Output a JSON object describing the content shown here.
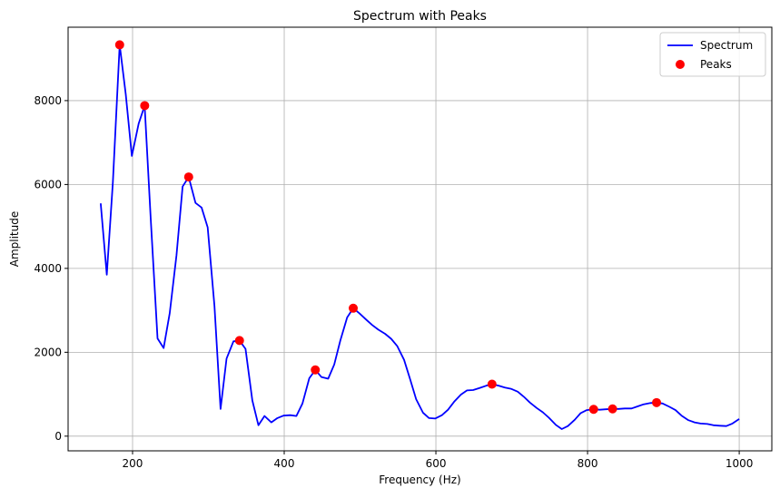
{
  "chart_data": {
    "type": "line",
    "title": "Spectrum with Peaks",
    "xlabel": "Frequency (Hz)",
    "ylabel": "Amplitude",
    "xlim": [
      115,
      1043
    ],
    "ylim": [
      -350,
      9750
    ],
    "xticks": [
      200,
      400,
      600,
      800,
      1000
    ],
    "yticks": [
      0,
      2000,
      4000,
      6000,
      8000
    ],
    "grid": true,
    "legend_position": "top-right",
    "colors": {
      "spectrum": "#0000ff",
      "peaks": "#ff0000"
    },
    "series": [
      {
        "name": "Spectrum",
        "kind": "line",
        "x": [
          158,
          166,
          174,
          183,
          191,
          199,
          208,
          216,
          224,
          233,
          241,
          249,
          258,
          266,
          274,
          283,
          291,
          299,
          308,
          316,
          324,
          333,
          341,
          349,
          358,
          366,
          374,
          383,
          391,
          399,
          408,
          416,
          424,
          433,
          441,
          449,
          458,
          466,
          474,
          483,
          491,
          499,
          508,
          516,
          524,
          533,
          541,
          549,
          558,
          566,
          574,
          583,
          591,
          599,
          608,
          616,
          624,
          633,
          641,
          649,
          658,
          666,
          674,
          683,
          691,
          699,
          708,
          716,
          724,
          733,
          741,
          749,
          758,
          766,
          774,
          783,
          791,
          799,
          808,
          816,
          824,
          833,
          841,
          849,
          858,
          866,
          874,
          883,
          891,
          899,
          908,
          916,
          924,
          933,
          941,
          949,
          958,
          966,
          974,
          983,
          991,
          1000
        ],
        "values": [
          5550,
          3850,
          6050,
          9330,
          8150,
          6680,
          7450,
          7880,
          5180,
          2330,
          2100,
          2930,
          4320,
          5950,
          6180,
          5560,
          5450,
          4980,
          3100,
          650,
          1850,
          2260,
          2280,
          2080,
          850,
          260,
          480,
          330,
          430,
          490,
          500,
          480,
          780,
          1380,
          1580,
          1410,
          1370,
          1710,
          2280,
          2830,
          3050,
          2930,
          2780,
          2650,
          2540,
          2440,
          2320,
          2150,
          1820,
          1360,
          880,
          560,
          430,
          420,
          500,
          630,
          820,
          990,
          1090,
          1100,
          1150,
          1200,
          1240,
          1200,
          1160,
          1130,
          1060,
          940,
          800,
          670,
          570,
          440,
          270,
          170,
          240,
          390,
          550,
          620,
          640,
          630,
          640,
          650,
          650,
          660,
          660,
          710,
          760,
          790,
          800,
          780,
          700,
          620,
          490,
          380,
          330,
          300,
          290,
          260,
          250,
          240,
          300,
          410
        ]
      },
      {
        "name": "Peaks",
        "kind": "scatter",
        "x": [
          183,
          216,
          274,
          341,
          441,
          491,
          674,
          808,
          833,
          891
        ],
        "values": [
          9330,
          7880,
          6180,
          2280,
          1580,
          3050,
          1240,
          640,
          650,
          800
        ]
      }
    ]
  }
}
